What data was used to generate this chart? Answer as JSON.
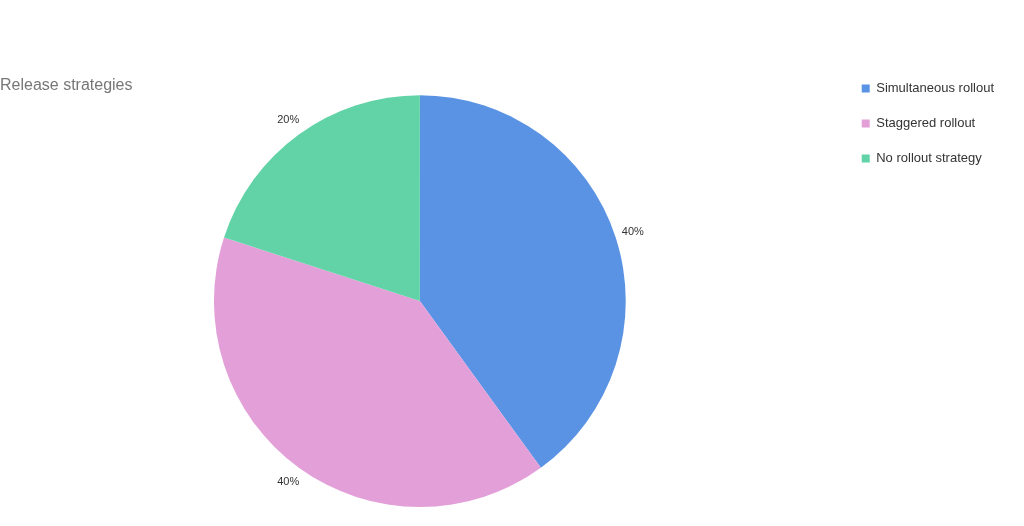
{
  "chart_data": {
    "type": "pie",
    "title": "Release strategies",
    "categories": [
      "Simultaneous rollout",
      "Staggered rollout",
      "No rollout strategy"
    ],
    "values": [
      40,
      40,
      20
    ],
    "value_labels": [
      "40%",
      "40%",
      "20%"
    ],
    "colors": [
      "#5b93e4",
      "#e29fd8",
      "#62d3a6"
    ],
    "legend": "top right"
  }
}
